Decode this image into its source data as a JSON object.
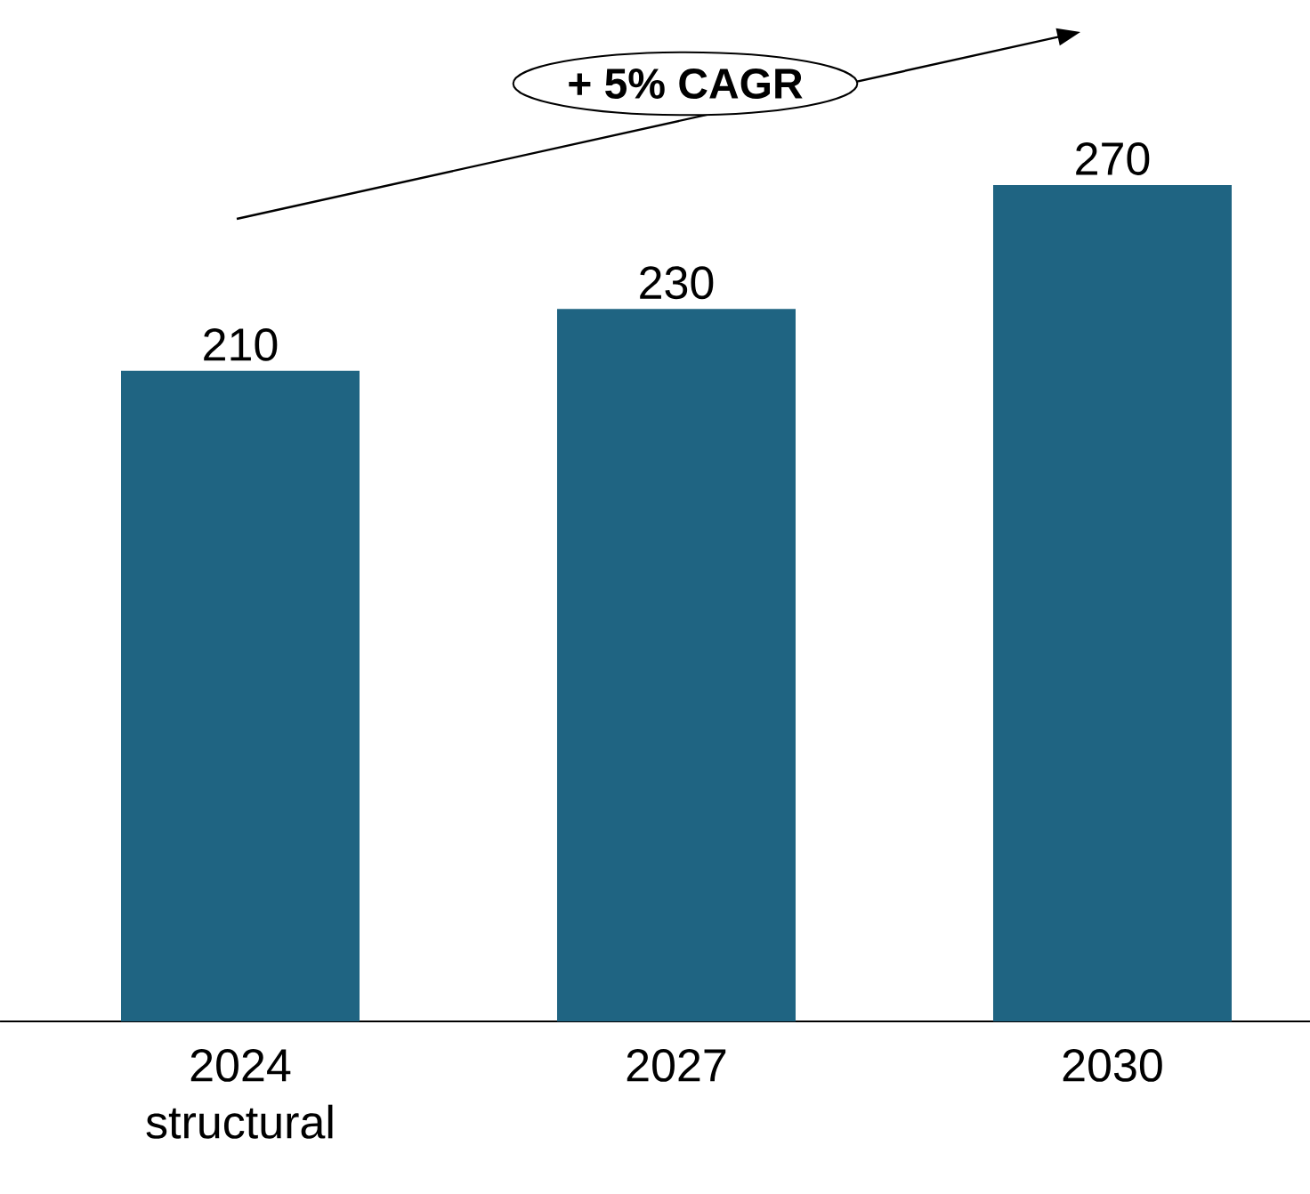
{
  "chart_data": {
    "type": "bar",
    "categories": [
      "2024 structural",
      "2027",
      "2030"
    ],
    "values": [
      210,
      230,
      270
    ],
    "color": "#1f6482",
    "data_labels": true,
    "annotations": [
      "+ 5% CAGR"
    ]
  }
}
